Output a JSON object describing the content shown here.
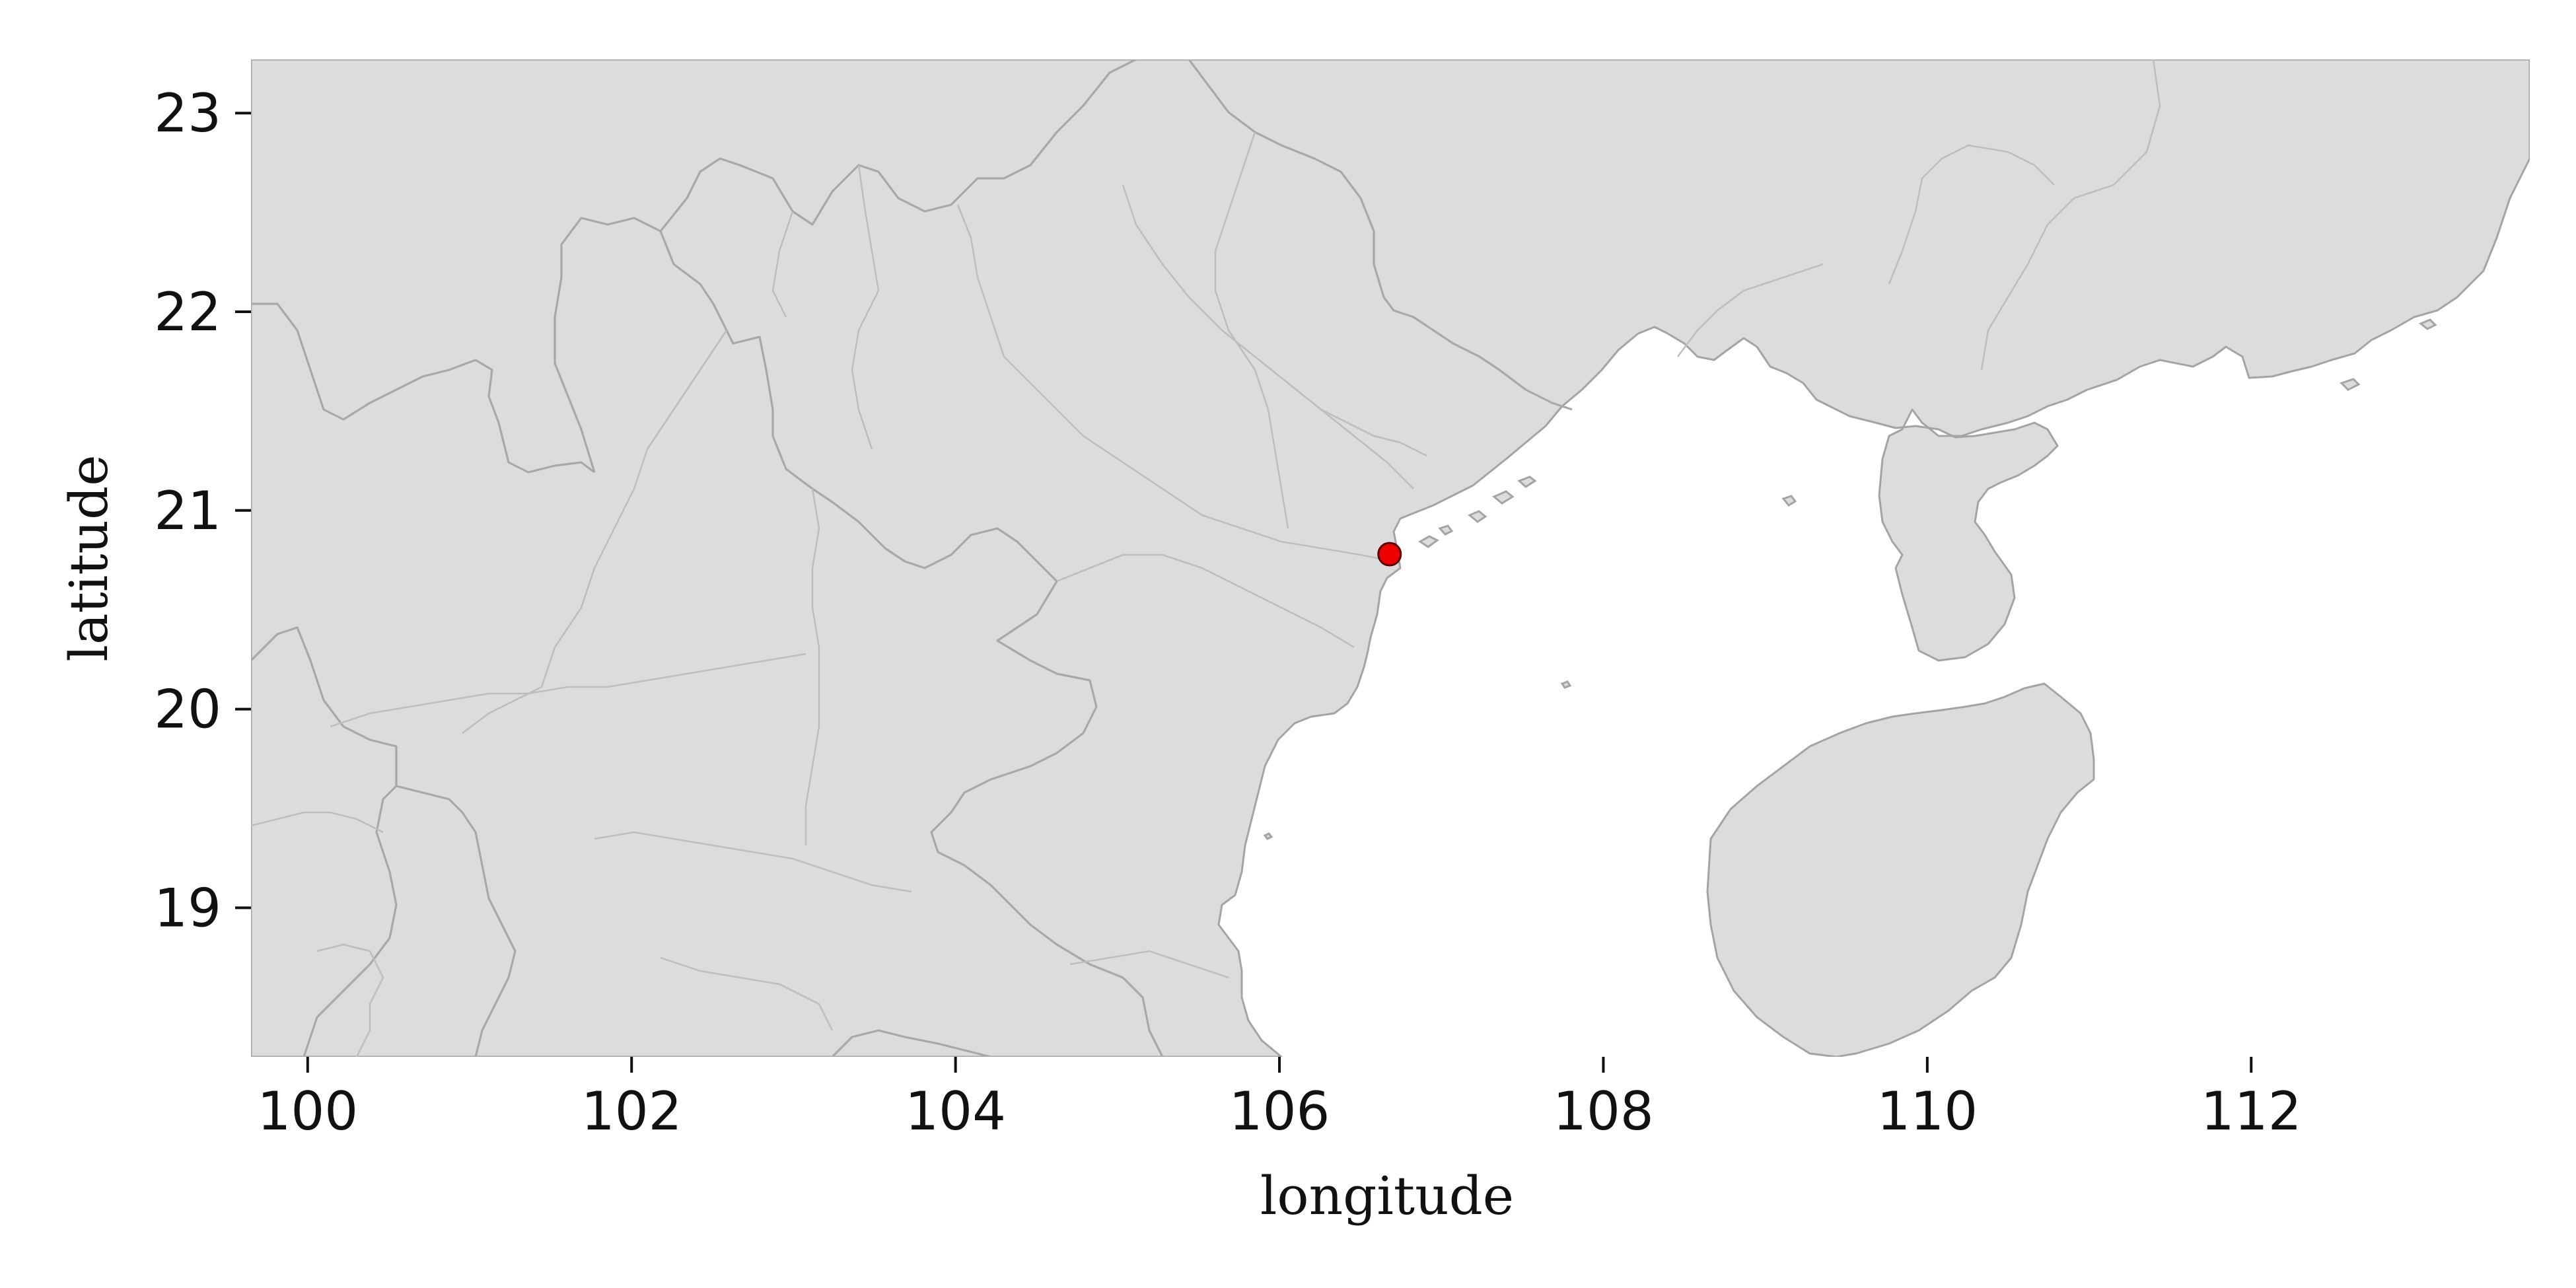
{
  "map": {
    "xlabel": "longitude",
    "ylabel": "latitude",
    "xlim": [
      99.65,
      113.72
    ],
    "ylim": [
      18.25,
      23.27
    ],
    "land_color": "#dcdcdc",
    "coastline_color": "#a4a4a4",
    "marker_color": "#ee0000"
  },
  "x_ticks": [
    {
      "value": 100,
      "label": "100"
    },
    {
      "value": 102,
      "label": "102"
    },
    {
      "value": 104,
      "label": "104"
    },
    {
      "value": 106,
      "label": "106"
    },
    {
      "value": 108,
      "label": "108"
    },
    {
      "value": 110,
      "label": "110"
    },
    {
      "value": 112,
      "label": "112"
    }
  ],
  "y_ticks": [
    {
      "value": 19,
      "label": "19"
    },
    {
      "value": 20,
      "label": "20"
    },
    {
      "value": 21,
      "label": "21"
    },
    {
      "value": 22,
      "label": "22"
    },
    {
      "value": 23,
      "label": "23"
    }
  ],
  "points": [
    {
      "lon": 106.68,
      "lat": 20.78,
      "color": "#ee0000"
    }
  ]
}
